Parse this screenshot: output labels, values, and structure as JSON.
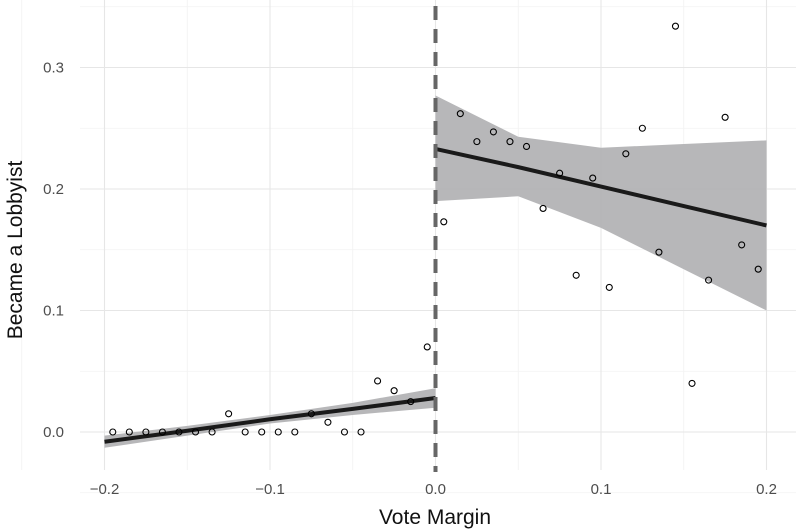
{
  "chart_data": {
    "type": "scatter",
    "title": "",
    "xlabel": "Vote Margin",
    "ylabel": "Became a Lobbyist",
    "xlim": [
      -0.2,
      0.2
    ],
    "ylim": [
      0.0,
      0.3
    ],
    "x_ticks": [
      -0.2,
      -0.1,
      0.0,
      0.1,
      0.2
    ],
    "x_tick_labels": [
      "−0.2",
      "−0.1",
      "0.0",
      "0.1",
      "0.2"
    ],
    "y_ticks": [
      0.0,
      0.1,
      0.2,
      0.3
    ],
    "y_tick_labels": [
      "0.0",
      "0.1",
      "0.2",
      "0.3"
    ],
    "grid": true,
    "cutoff": 0.0,
    "cutoff_style": "dashed",
    "colors": {
      "points": "#000000",
      "fit_line": "#1a1a1a",
      "ribbon": "#b3b3b5",
      "cutoff_line": "#666666",
      "grid": "#e6e6e6"
    },
    "points": [
      {
        "x": -0.195,
        "y": 0.0
      },
      {
        "x": -0.185,
        "y": 0.0
      },
      {
        "x": -0.175,
        "y": 0.0
      },
      {
        "x": -0.165,
        "y": 0.0
      },
      {
        "x": -0.155,
        "y": 0.0
      },
      {
        "x": -0.145,
        "y": 0.0
      },
      {
        "x": -0.135,
        "y": 0.0
      },
      {
        "x": -0.125,
        "y": 0.015
      },
      {
        "x": -0.115,
        "y": 0.0
      },
      {
        "x": -0.105,
        "y": 0.0
      },
      {
        "x": -0.095,
        "y": 0.0
      },
      {
        "x": -0.085,
        "y": 0.0
      },
      {
        "x": -0.075,
        "y": 0.015
      },
      {
        "x": -0.065,
        "y": 0.008
      },
      {
        "x": -0.055,
        "y": 0.0
      },
      {
        "x": -0.045,
        "y": 0.0
      },
      {
        "x": -0.035,
        "y": 0.042
      },
      {
        "x": -0.025,
        "y": 0.034
      },
      {
        "x": -0.015,
        "y": 0.025
      },
      {
        "x": -0.005,
        "y": 0.07
      },
      {
        "x": 0.005,
        "y": 0.173
      },
      {
        "x": 0.015,
        "y": 0.262
      },
      {
        "x": 0.025,
        "y": 0.239
      },
      {
        "x": 0.035,
        "y": 0.247
      },
      {
        "x": 0.045,
        "y": 0.239
      },
      {
        "x": 0.055,
        "y": 0.235
      },
      {
        "x": 0.065,
        "y": 0.184
      },
      {
        "x": 0.075,
        "y": 0.213
      },
      {
        "x": 0.085,
        "y": 0.129
      },
      {
        "x": 0.095,
        "y": 0.209
      },
      {
        "x": 0.105,
        "y": 0.119
      },
      {
        "x": 0.115,
        "y": 0.229
      },
      {
        "x": 0.125,
        "y": 0.25
      },
      {
        "x": 0.135,
        "y": 0.148
      },
      {
        "x": 0.145,
        "y": 0.334
      },
      {
        "x": 0.155,
        "y": 0.04
      },
      {
        "x": 0.165,
        "y": 0.125
      },
      {
        "x": 0.175,
        "y": 0.259
      },
      {
        "x": 0.185,
        "y": 0.154
      },
      {
        "x": 0.195,
        "y": 0.134
      }
    ],
    "fits": [
      {
        "side": "left",
        "x": [
          -0.2,
          -0.15,
          -0.1,
          -0.05,
          0.0
        ],
        "y": [
          -0.008,
          0.001,
          0.0105,
          0.019,
          0.028
        ],
        "lower": [
          -0.013,
          -0.003,
          0.007,
          0.014,
          0.02
        ],
        "upper": [
          -0.003,
          0.005,
          0.014,
          0.024,
          0.036
        ]
      },
      {
        "side": "right",
        "x": [
          0.0,
          0.05,
          0.1,
          0.15,
          0.2
        ],
        "y": [
          0.233,
          0.218,
          0.202,
          0.186,
          0.17
        ],
        "lower": [
          0.19,
          0.194,
          0.168,
          0.134,
          0.1
        ],
        "upper": [
          0.277,
          0.243,
          0.234,
          0.237,
          0.24
        ]
      }
    ]
  }
}
